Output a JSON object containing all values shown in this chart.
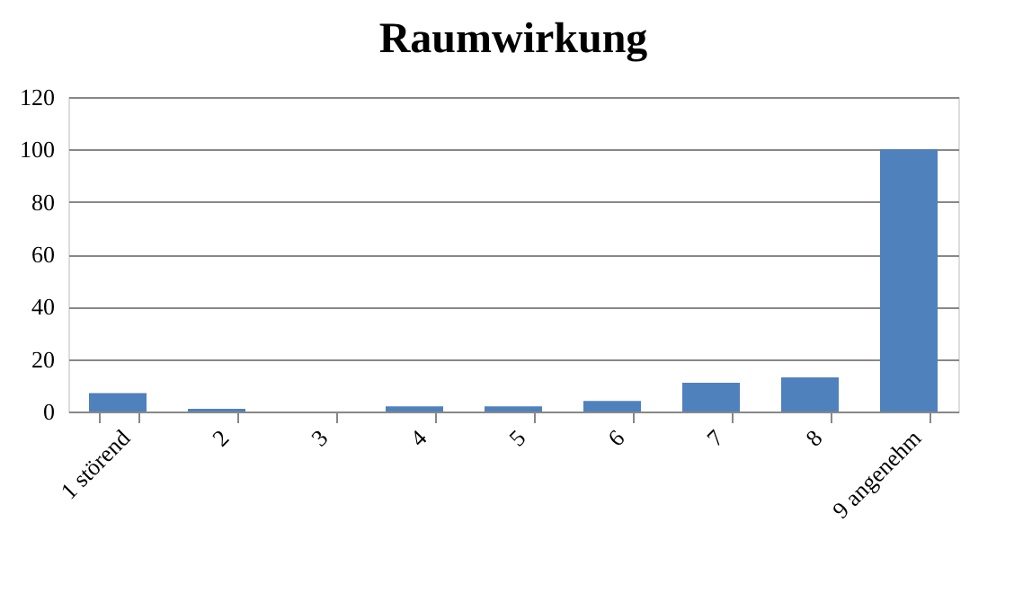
{
  "chart_data": {
    "type": "bar",
    "title": "Raumwirkung",
    "categories": [
      "1 störend",
      "2",
      "3",
      "4",
      "5",
      "6",
      "7",
      "8",
      "9 angenehm"
    ],
    "values": [
      7,
      1,
      0,
      2,
      2,
      4,
      11,
      13,
      100
    ],
    "color": "#4f81bd",
    "ylim": [
      0,
      120
    ],
    "yticks": [
      0,
      20,
      40,
      60,
      80,
      100,
      120
    ],
    "grid": "y"
  }
}
